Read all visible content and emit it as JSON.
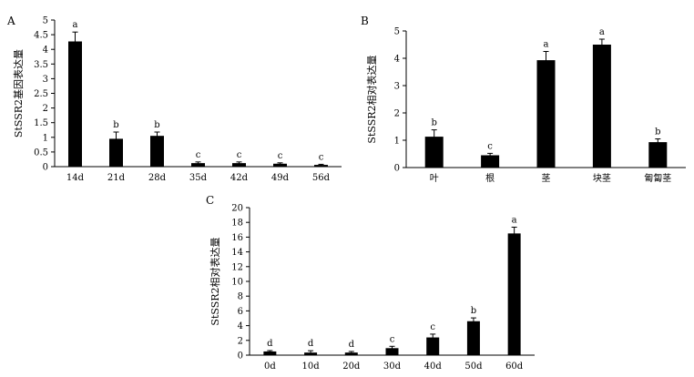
{
  "chart_data": [
    {
      "panel_label": "A",
      "type": "bar",
      "ylabel": "StSSR2基因表达量",
      "categories": [
        "14d",
        "21d",
        "28d",
        "35d",
        "42d",
        "49d",
        "56d"
      ],
      "values": [
        4.27,
        0.95,
        1.05,
        0.12,
        0.12,
        0.1,
        0.06
      ],
      "errors": [
        0.32,
        0.23,
        0.13,
        0.04,
        0.04,
        0.03,
        0.02
      ],
      "significance": [
        "a",
        "b",
        "b",
        "c",
        "c",
        "c",
        "c"
      ],
      "ylim": [
        0,
        5
      ],
      "yticks": [
        0,
        0.5,
        1,
        1.5,
        2,
        2.5,
        3,
        3.5,
        4,
        4.5,
        5
      ]
    },
    {
      "panel_label": "B",
      "type": "bar",
      "ylabel": "StSSR2相对表达量",
      "categories": [
        "叶",
        "根",
        "茎",
        "块茎",
        "匍匐茎"
      ],
      "values": [
        1.13,
        0.45,
        3.93,
        4.5,
        0.93
      ],
      "errors": [
        0.25,
        0.07,
        0.32,
        0.2,
        0.12
      ],
      "significance": [
        "b",
        "c",
        "a",
        "a",
        "b"
      ],
      "ylim": [
        0,
        5
      ],
      "yticks": [
        0,
        1,
        2,
        3,
        4,
        5
      ]
    },
    {
      "panel_label": "C",
      "type": "bar",
      "ylabel": "StSSR2相对表达量",
      "categories": [
        "0d",
        "10d",
        "20d",
        "30d",
        "40d",
        "50d",
        "60d"
      ],
      "values": [
        0.5,
        0.35,
        0.35,
        0.95,
        2.4,
        4.6,
        16.5
      ],
      "errors": [
        0.12,
        0.25,
        0.15,
        0.25,
        0.45,
        0.45,
        0.85
      ],
      "significance": [
        "d",
        "d",
        "d",
        "c",
        "c",
        "b",
        "a"
      ],
      "ylim": [
        0,
        20
      ],
      "yticks": [
        0,
        2,
        4,
        6,
        8,
        10,
        12,
        14,
        16,
        18,
        20
      ]
    }
  ]
}
